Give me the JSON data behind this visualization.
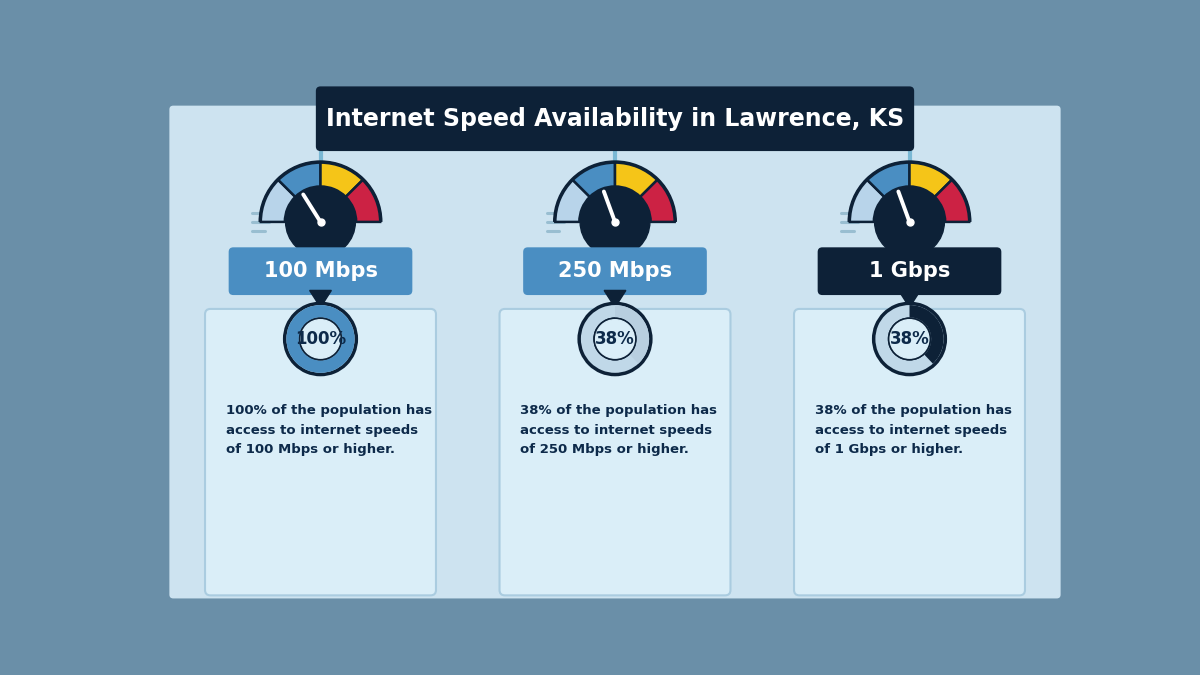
{
  "title": "Internet Speed Availability in Lawrence, KS",
  "title_bg": "#0d2137",
  "title_color": "#ffffff",
  "bg_color": "#cde3f0",
  "outer_bg": "#6a8fa8",
  "panel_bg": "#daeef8",
  "panel_border": "#aacce0",
  "speeds": [
    "100 Mbps",
    "250 Mbps",
    "1 Gbps"
  ],
  "percentages": [
    100,
    38,
    38
  ],
  "descriptions": [
    "100% of the population has\naccess to internet speeds\nof 100 Mbps or higher.",
    "38% of the population has\naccess to internet speeds\nof 250 Mbps or higher.",
    "38% of the population has\naccess to internet speeds\nof 1 Gbps or higher."
  ],
  "speed_label_bg": [
    "#4a8ec2",
    "#4a8ec2",
    "#0d2137"
  ],
  "speed_label_color": "#ffffff",
  "gauge_seg_colors": [
    "#b8d4ea",
    "#4a8ec2",
    "#f5c518",
    "#cc2244"
  ],
  "gauge_dark": "#0d2137",
  "donut_filled_colors": [
    "#4a8ec2",
    "#b8cfe0",
    "#0d2137"
  ],
  "donut_empty_color": "#c0d8e8",
  "donut_dark_color": "#0d2137",
  "connector_color": "#7ab8d4",
  "text_color": "#0d2a4a",
  "speed_lines_color": "#90b8cc"
}
